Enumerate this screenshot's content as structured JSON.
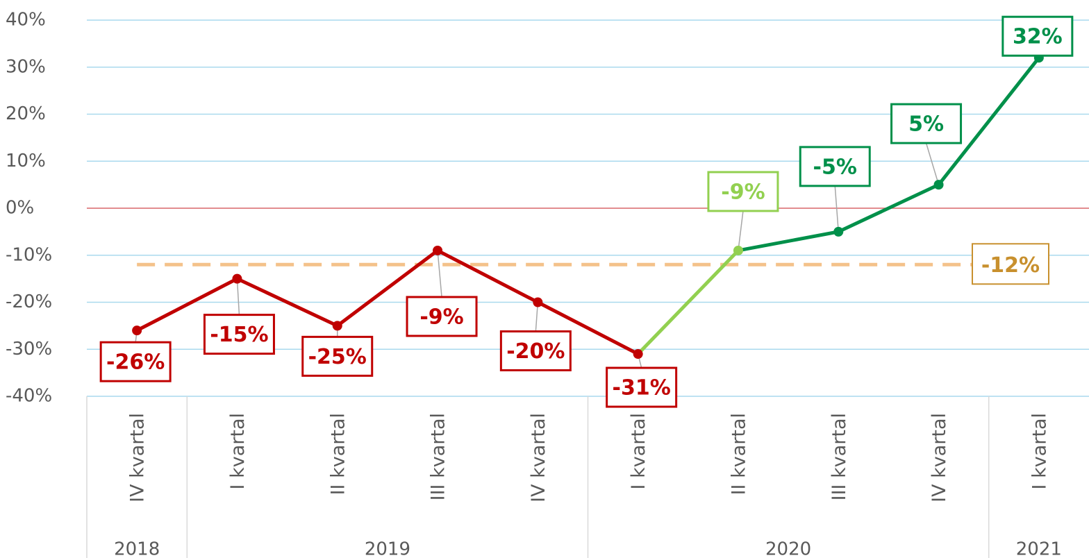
{
  "chart_data": {
    "type": "line",
    "categories": [
      "IV kvartal",
      "I kvartal",
      "II kvartal",
      "III kvartal",
      "IV kvartal",
      "I kvartal",
      "II kvartal",
      "III kvartal",
      "IV kvartal",
      "I kvartal"
    ],
    "groups": [
      {
        "label": "2018",
        "span": 1
      },
      {
        "label": "2019",
        "span": 4
      },
      {
        "label": "2020",
        "span": 4
      },
      {
        "label": "2021",
        "span": 1
      }
    ],
    "series": [
      {
        "values": [
          -26,
          -15,
          -25,
          -9,
          -20,
          -31,
          -9,
          -5,
          5,
          32
        ],
        "value_labels": [
          "-26%",
          "-15%",
          "-25%",
          "-9%",
          "-20%",
          "-31%",
          "-9%",
          "-5%",
          "5%",
          "32%"
        ],
        "colors": [
          "#c00000",
          "#c00000",
          "#c00000",
          "#c00000",
          "#c00000",
          "#c00000",
          "#92d050",
          "#00904a",
          "#00904a",
          "#00904a"
        ]
      }
    ],
    "average": {
      "value": -12,
      "label": "-12%",
      "color": "#f4c28a",
      "label_color": "#c8902e"
    },
    "ylim": [
      -40,
      40
    ],
    "yticks": [
      {
        "value": -40,
        "label": "-40%"
      },
      {
        "value": -30,
        "label": "-30%"
      },
      {
        "value": -20,
        "label": "-20%"
      },
      {
        "value": -10,
        "label": "-10%"
      },
      {
        "value": 0,
        "label": "0%"
      },
      {
        "value": 10,
        "label": "10%"
      },
      {
        "value": 20,
        "label": "20%"
      },
      {
        "value": 30,
        "label": "30%"
      },
      {
        "value": 40,
        "label": "40%"
      }
    ],
    "grid": true,
    "grid_color": "#a9d9ee",
    "zero_line_color": "#d9676a"
  }
}
